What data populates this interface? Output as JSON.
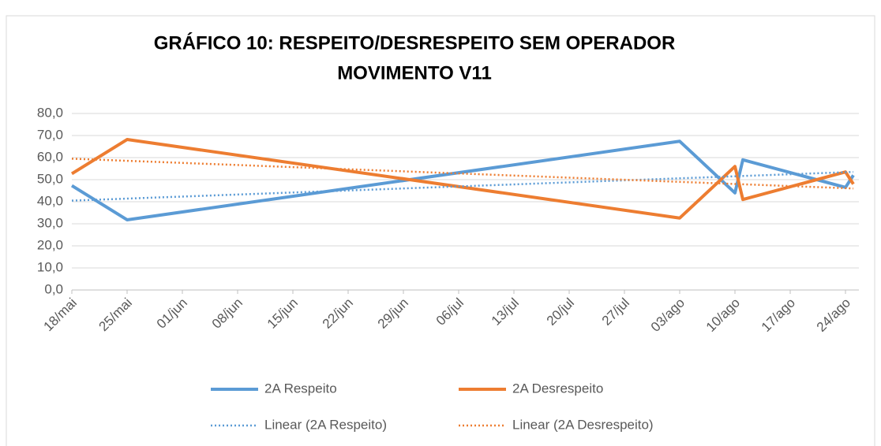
{
  "chart_data": {
    "type": "line",
    "title": [
      "GRÁFICO 10: RESPEITO/DESRESPEITO SEM OPERADOR",
      "MOVIMENTO V11"
    ],
    "xlim": [
      "18/mai",
      "25/ago"
    ],
    "xticks": [
      "18/mai",
      "25/mai",
      "01/jun",
      "08/jun",
      "15/jun",
      "22/jun",
      "29/jun",
      "06/jul",
      "13/jul",
      "20/jul",
      "27/jul",
      "03/ago",
      "10/ago",
      "17/ago",
      "24/ago"
    ],
    "ylim": [
      0,
      80
    ],
    "yticks": [
      {
        "value": 0,
        "label": "0,0"
      },
      {
        "value": 10,
        "label": "10,0"
      },
      {
        "value": 20,
        "label": "20,0"
      },
      {
        "value": 30,
        "label": "30,0"
      },
      {
        "value": 40,
        "label": "40,0"
      },
      {
        "value": 50,
        "label": "50,0"
      },
      {
        "value": 60,
        "label": "60,0"
      },
      {
        "value": 70,
        "label": "70,0"
      },
      {
        "value": 80,
        "label": "80,0"
      }
    ],
    "grid": true,
    "legend": "bottom",
    "series": [
      {
        "name": "2A Respeito",
        "color": "#5b9bd5",
        "style": "solid",
        "x": [
          "18/mai",
          "25/mai",
          "03/ago",
          "10/ago",
          "11/ago",
          "24/ago",
          "25/ago"
        ],
        "values": [
          47.3,
          31.8,
          67.4,
          44.0,
          59.0,
          46.5,
          52.0
        ]
      },
      {
        "name": "2A Desrespeito",
        "color": "#ed7d31",
        "style": "solid",
        "x": [
          "18/mai",
          "25/mai",
          "03/ago",
          "10/ago",
          "11/ago",
          "24/ago",
          "25/ago"
        ],
        "values": [
          52.7,
          68.2,
          32.6,
          56.0,
          41.0,
          53.5,
          48.0
        ]
      },
      {
        "name": "Linear (2A Respeito)",
        "color": "#5b9bd5",
        "style": "dotted",
        "x": [
          "18/mai",
          "25/ago"
        ],
        "values": [
          40.5,
          53.5
        ]
      },
      {
        "name": "Linear (2A Desrespeito)",
        "color": "#ed7d31",
        "style": "dotted",
        "x": [
          "18/mai",
          "25/ago"
        ],
        "values": [
          59.5,
          46.0
        ]
      }
    ]
  }
}
